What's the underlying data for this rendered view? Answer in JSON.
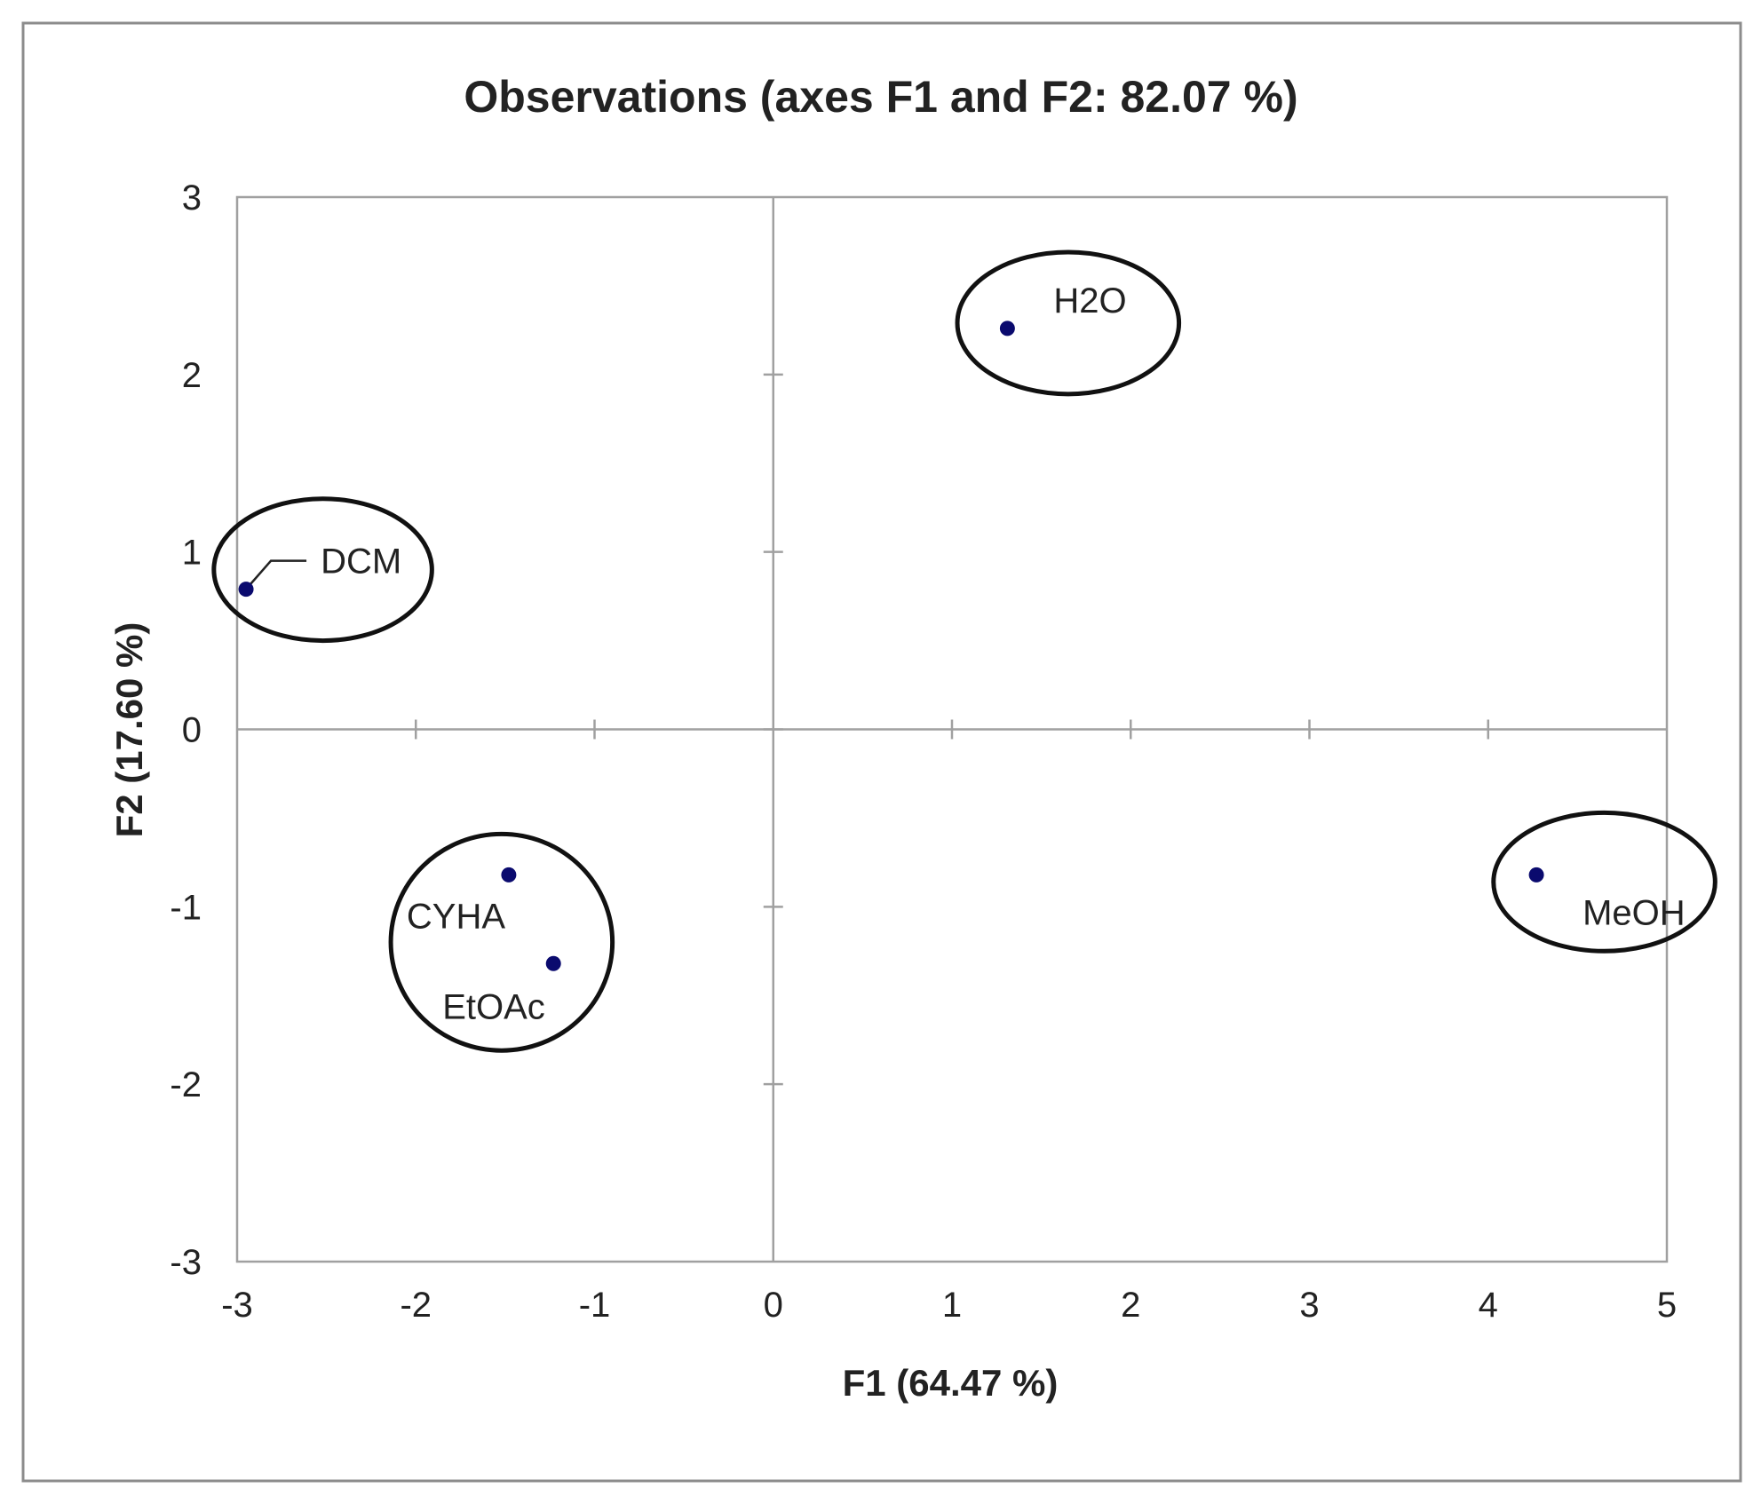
{
  "chart_data": {
    "type": "scatter",
    "title": "Observations (axes F1 and F2: 82.07 %)",
    "xlabel": "F1 (64.47 %)",
    "ylabel": "F2 (17.60 %)",
    "xlim": [
      -3,
      5
    ],
    "ylim": [
      -3,
      3
    ],
    "x_ticks": [
      "-3",
      "-2",
      "-1",
      "0",
      "1",
      "2",
      "3",
      "4",
      "5"
    ],
    "y_ticks": [
      "-3",
      "-2",
      "-1",
      "0",
      "1",
      "2",
      "3"
    ],
    "grid": false,
    "points": [
      {
        "label": "H2O",
        "x": 1.31,
        "y": 2.26
      },
      {
        "label": "DCM",
        "x": -2.95,
        "y": 0.79
      },
      {
        "label": "CYHA",
        "x": -1.48,
        "y": -0.82
      },
      {
        "label": "EtOAc",
        "x": -1.23,
        "y": -1.32
      },
      {
        "label": "MeOH",
        "x": 4.27,
        "y": -0.82
      }
    ],
    "groups": [
      {
        "center": [
          1.65,
          2.29
        ],
        "radius": [
          0.62,
          0.4
        ]
      },
      {
        "center": [
          -2.52,
          0.9
        ],
        "radius": [
          0.61,
          0.4
        ]
      },
      {
        "center": [
          -1.52,
          -1.2
        ],
        "radius": [
          0.62,
          0.61
        ]
      },
      {
        "center": [
          4.65,
          -0.86
        ],
        "radius": [
          0.62,
          0.39
        ]
      }
    ],
    "marker_color": "#0a0a6e"
  }
}
